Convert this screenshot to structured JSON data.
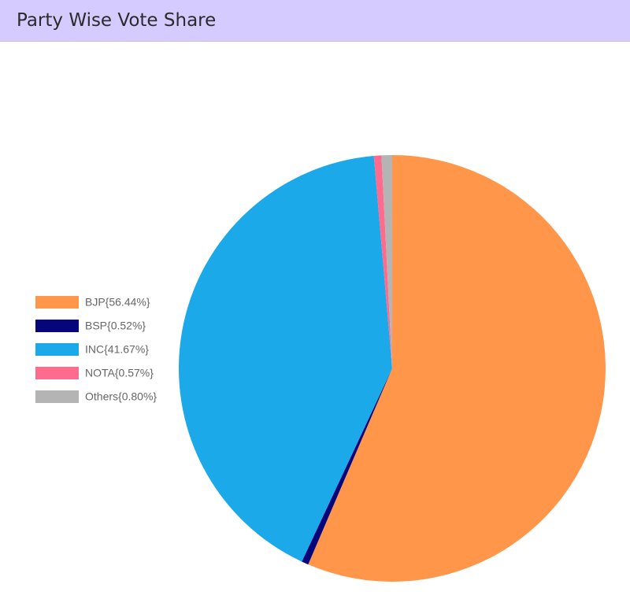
{
  "chart_data": {
    "type": "pie",
    "title": "Party Wise Vote Share",
    "categories": [
      "BJP{56.44%}",
      "BSP{0.52%}",
      "INC{41.67%}",
      "NOTA{0.57%}",
      "Others{0.80%}"
    ],
    "values": [
      56.44,
      0.52,
      41.67,
      0.57,
      0.8
    ],
    "colors": [
      "#ff964a",
      "#06067a",
      "#1ba9ea",
      "#ff6b8c",
      "#b4b4b4"
    ],
    "legend": "left"
  }
}
